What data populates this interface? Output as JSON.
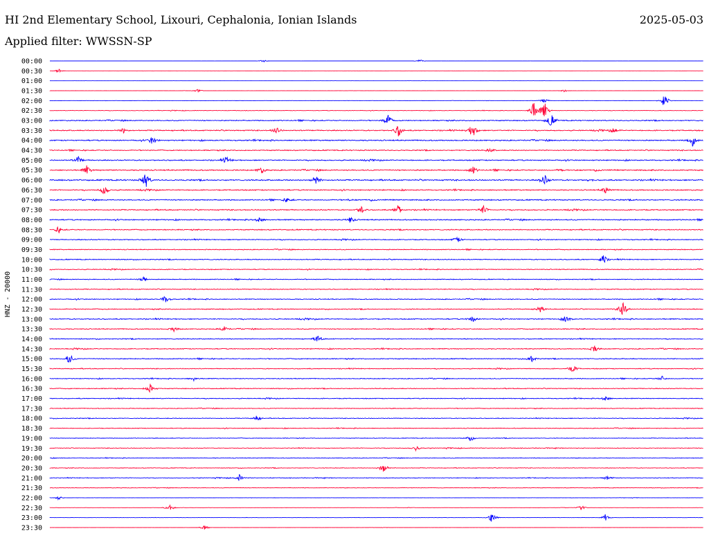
{
  "header": {
    "station": "HI 2nd Elementary School, Lixouri, Cephalonia, Ionian Islands",
    "date": "2025-05-03",
    "filter": "Applied filter: WWSSN-SP"
  },
  "chart_data": {
    "type": "line",
    "title": "HI 2nd Elementary School, Lixouri, Cephalonia, Ionian Islands",
    "ylabel": "HNZ - 20000",
    "rows": [
      "00:00",
      "00:30",
      "01:00",
      "01:30",
      "02:00",
      "02:30",
      "03:00",
      "03:30",
      "04:00",
      "04:30",
      "05:00",
      "05:30",
      "06:00",
      "06:30",
      "07:00",
      "07:30",
      "08:00",
      "08:30",
      "09:00",
      "09:30",
      "10:00",
      "10:30",
      "11:00",
      "11:30",
      "12:00",
      "12:30",
      "13:00",
      "13:30",
      "14:00",
      "14:30",
      "15:00",
      "15:30",
      "16:00",
      "16:30",
      "17:00",
      "17:30",
      "18:00",
      "18:30",
      "19:00",
      "19:30",
      "20:00",
      "20:30",
      "21:00",
      "21:30",
      "22:00",
      "22:30",
      "23:00",
      "23:30"
    ],
    "row_colors": [
      "#0000ff",
      "#ff0033"
    ],
    "trace_minutes": 30,
    "noise_level": [
      0.05,
      0.05,
      0.05,
      0.1,
      0.15,
      0.25,
      0.55,
      0.6,
      0.65,
      0.55,
      0.6,
      0.65,
      0.7,
      0.6,
      0.6,
      0.6,
      0.6,
      0.55,
      0.5,
      0.45,
      0.5,
      0.45,
      0.45,
      0.45,
      0.5,
      0.5,
      0.55,
      0.5,
      0.5,
      0.5,
      0.5,
      0.45,
      0.45,
      0.45,
      0.45,
      0.4,
      0.4,
      0.4,
      0.35,
      0.35,
      0.35,
      0.35,
      0.35,
      0.3,
      0.15,
      0.15,
      0.15,
      0.1
    ],
    "events": [
      {
        "row": 0,
        "minute": 9.8,
        "amp": 2
      },
      {
        "row": 0,
        "minute": 17,
        "amp": 2
      },
      {
        "row": 1,
        "minute": 0.4,
        "amp": 3
      },
      {
        "row": 3,
        "minute": 6.8,
        "amp": 2
      },
      {
        "row": 3,
        "minute": 23.6,
        "amp": 2
      },
      {
        "row": 4,
        "minute": 22.7,
        "amp": 4
      },
      {
        "row": 4,
        "minute": 28.2,
        "amp": 12
      },
      {
        "row": 5,
        "minute": 22.2,
        "amp": 14
      },
      {
        "row": 5,
        "minute": 22.7,
        "amp": 14
      },
      {
        "row": 6,
        "minute": 15.5,
        "amp": 10
      },
      {
        "row": 6,
        "minute": 23,
        "amp": 12
      },
      {
        "row": 7,
        "minute": 3.4,
        "amp": 4
      },
      {
        "row": 7,
        "minute": 10.4,
        "amp": 5
      },
      {
        "row": 7,
        "minute": 16,
        "amp": 9
      },
      {
        "row": 7,
        "minute": 19.4,
        "amp": 12
      },
      {
        "row": 7,
        "minute": 25.9,
        "amp": 4
      },
      {
        "row": 8,
        "minute": 4.7,
        "amp": 6
      },
      {
        "row": 8,
        "minute": 29.5,
        "amp": 9
      },
      {
        "row": 9,
        "minute": 20.2,
        "amp": 3
      },
      {
        "row": 10,
        "minute": 1.3,
        "amp": 6
      },
      {
        "row": 10,
        "minute": 8.1,
        "amp": 6
      },
      {
        "row": 11,
        "minute": 1.7,
        "amp": 7
      },
      {
        "row": 11,
        "minute": 9.7,
        "amp": 5
      },
      {
        "row": 11,
        "minute": 19.4,
        "amp": 7
      },
      {
        "row": 12,
        "minute": 4.4,
        "amp": 14
      },
      {
        "row": 12,
        "minute": 12.2,
        "amp": 7
      },
      {
        "row": 12,
        "minute": 22.7,
        "amp": 9
      },
      {
        "row": 13,
        "minute": 2.5,
        "amp": 9
      },
      {
        "row": 13,
        "minute": 25.5,
        "amp": 5
      },
      {
        "row": 14,
        "minute": 10.9,
        "amp": 4
      },
      {
        "row": 15,
        "minute": 14.3,
        "amp": 6
      },
      {
        "row": 15,
        "minute": 16,
        "amp": 8
      },
      {
        "row": 15,
        "minute": 19.9,
        "amp": 7
      },
      {
        "row": 16,
        "minute": 9.6,
        "amp": 5
      },
      {
        "row": 16,
        "minute": 13.8,
        "amp": 5
      },
      {
        "row": 17,
        "minute": 0.4,
        "amp": 5
      },
      {
        "row": 18,
        "minute": 18.7,
        "amp": 5
      },
      {
        "row": 20,
        "minute": 25.4,
        "amp": 8
      },
      {
        "row": 22,
        "minute": 4.3,
        "amp": 4
      },
      {
        "row": 24,
        "minute": 5.3,
        "amp": 6
      },
      {
        "row": 25,
        "minute": 22.5,
        "amp": 5
      },
      {
        "row": 25,
        "minute": 26.3,
        "amp": 14
      },
      {
        "row": 26,
        "minute": 19.4,
        "amp": 5
      },
      {
        "row": 26,
        "minute": 23.7,
        "amp": 6
      },
      {
        "row": 27,
        "minute": 5.7,
        "amp": 4
      },
      {
        "row": 27,
        "minute": 8,
        "amp": 4
      },
      {
        "row": 28,
        "minute": 12.3,
        "amp": 5
      },
      {
        "row": 29,
        "minute": 25,
        "amp": 6
      },
      {
        "row": 30,
        "minute": 0.9,
        "amp": 8
      },
      {
        "row": 30,
        "minute": 22.1,
        "amp": 6
      },
      {
        "row": 31,
        "minute": 24,
        "amp": 6
      },
      {
        "row": 32,
        "minute": 6.6,
        "amp": 3
      },
      {
        "row": 32,
        "minute": 28.1,
        "amp": 4
      },
      {
        "row": 33,
        "minute": 4.6,
        "amp": 8
      },
      {
        "row": 34,
        "minute": 25.5,
        "amp": 5
      },
      {
        "row": 36,
        "minute": 9.5,
        "amp": 4
      },
      {
        "row": 38,
        "minute": 19.3,
        "amp": 5
      },
      {
        "row": 39,
        "minute": 16.8,
        "amp": 4
      },
      {
        "row": 41,
        "minute": 15.3,
        "amp": 10
      },
      {
        "row": 42,
        "minute": 8.7,
        "amp": 5
      },
      {
        "row": 42,
        "minute": 25.6,
        "amp": 4
      },
      {
        "row": 44,
        "minute": 0.4,
        "amp": 3
      },
      {
        "row": 45,
        "minute": 5.5,
        "amp": 6
      },
      {
        "row": 45,
        "minute": 24.4,
        "amp": 4
      },
      {
        "row": 46,
        "minute": 20.3,
        "amp": 8
      },
      {
        "row": 46,
        "minute": 25.5,
        "amp": 5
      },
      {
        "row": 47,
        "minute": 7.1,
        "amp": 4
      }
    ]
  }
}
